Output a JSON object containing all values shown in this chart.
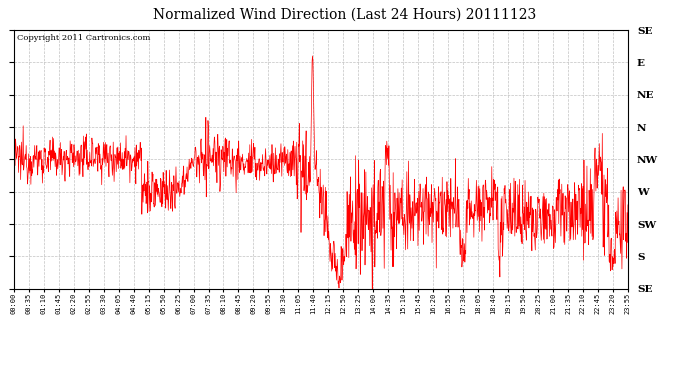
{
  "title": "Normalized Wind Direction (Last 24 Hours) 20111123",
  "copyright_text": "Copyright 2011 Cartronics.com",
  "line_color": "#ff0000",
  "background_color": "#ffffff",
  "grid_color": "#aaaaaa",
  "ytick_labels": [
    "SE",
    "E",
    "NE",
    "N",
    "NW",
    "W",
    "SW",
    "S",
    "SE"
  ],
  "ytick_values": [
    1.0,
    0.875,
    0.75,
    0.625,
    0.5,
    0.375,
    0.25,
    0.125,
    0.0
  ],
  "xtick_labels": [
    "00:00",
    "00:35",
    "01:10",
    "01:45",
    "02:20",
    "02:55",
    "03:30",
    "04:05",
    "04:40",
    "05:15",
    "05:50",
    "06:25",
    "07:00",
    "07:35",
    "08:10",
    "08:45",
    "09:20",
    "09:55",
    "10:30",
    "11:05",
    "11:40",
    "12:15",
    "12:50",
    "13:25",
    "14:00",
    "14:35",
    "15:10",
    "15:45",
    "16:20",
    "16:55",
    "17:30",
    "18:05",
    "18:40",
    "19:15",
    "19:50",
    "20:25",
    "21:00",
    "21:35",
    "22:10",
    "22:45",
    "23:20",
    "23:55"
  ],
  "seed": 12345,
  "npoints": 1440
}
